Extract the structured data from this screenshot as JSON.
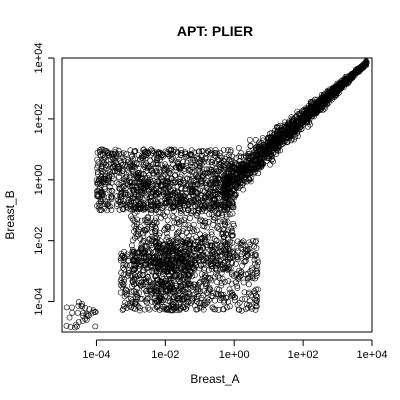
{
  "chart_data": {
    "type": "scatter",
    "title": "APT: PLIER",
    "xlabel": "Breast_A",
    "ylabel": "Breast_B",
    "xscale": "log10",
    "yscale": "log10",
    "xlim": [
      1e-05,
      10000.0
    ],
    "ylim": [
      1e-05,
      10000.0
    ],
    "xticks": [
      {
        "value": 0.0001,
        "label": "1e-04"
      },
      {
        "value": 0.01,
        "label": "1e-02"
      },
      {
        "value": 1,
        "label": "1e+00"
      },
      {
        "value": 100.0,
        "label": "1e+02"
      },
      {
        "value": 10000.0,
        "label": "1e+04"
      }
    ],
    "yticks": [
      {
        "value": 0.0001,
        "label": "1e-04"
      },
      {
        "value": 0.01,
        "label": "1e-02"
      },
      {
        "value": 1,
        "label": "1e+00"
      },
      {
        "value": 100.0,
        "label": "1e+02"
      },
      {
        "value": 10000.0,
        "label": "1e+04"
      }
    ],
    "grid": false,
    "marker": "open-circle",
    "point_clusters": [
      {
        "region": "diagonal",
        "x_range": [
          0.5,
          7000
        ],
        "y_range": [
          0.5,
          7000
        ],
        "approx_points": 1400
      },
      {
        "region": "upper-band",
        "x_range": [
          0.0001,
          1
        ],
        "y_range": [
          0.1,
          10
        ],
        "approx_points": 900
      },
      {
        "region": "center",
        "x_range": [
          0.001,
          1
        ],
        "y_range": [
          0.001,
          1
        ],
        "approx_points": 600
      },
      {
        "region": "lower-left",
        "x_range": [
          0.0005,
          0.05
        ],
        "y_range": [
          5e-05,
          0.005
        ],
        "approx_points": 400
      },
      {
        "region": "lower-right",
        "x_range": [
          0.005,
          5
        ],
        "y_range": [
          5e-05,
          0.01
        ],
        "approx_points": 500
      },
      {
        "region": "far-lower-left",
        "x_range": [
          1e-05,
          0.0001
        ],
        "y_range": [
          1e-05,
          0.0001
        ],
        "approx_points": 40
      }
    ]
  }
}
